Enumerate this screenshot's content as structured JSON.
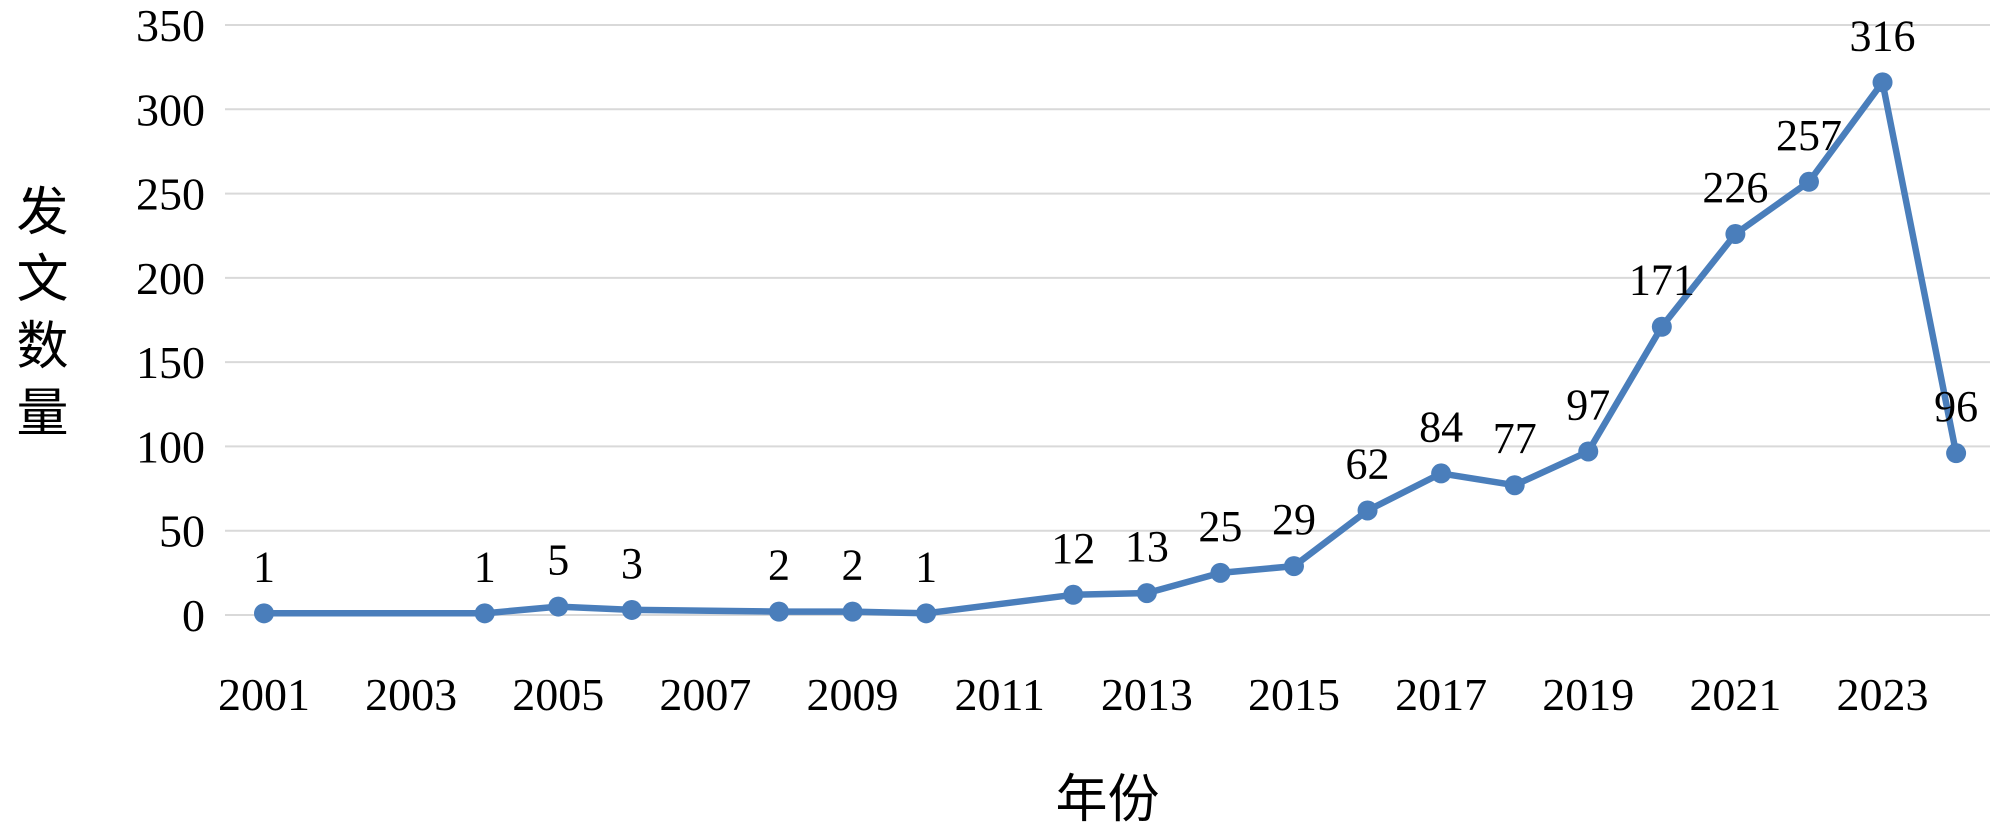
{
  "chart_data": {
    "type": "line",
    "title": "",
    "xlabel": "年份",
    "ylabel": "发文数量",
    "x": [
      2001,
      2004,
      2005,
      2006,
      2008,
      2009,
      2010,
      2012,
      2013,
      2014,
      2015,
      2016,
      2017,
      2018,
      2019,
      2020,
      2021,
      2022,
      2023,
      2024
    ],
    "values": [
      1,
      1,
      5,
      3,
      2,
      2,
      1,
      12,
      13,
      25,
      29,
      62,
      84,
      77,
      97,
      171,
      226,
      257,
      316,
      96
    ],
    "data_labels": [
      "1",
      "1",
      "5",
      "3",
      "2",
      "2",
      "1",
      "12",
      "13",
      "25",
      "29",
      "62",
      "84",
      "77",
      "97",
      "171",
      "226",
      "257",
      "316",
      "96"
    ],
    "x_ticks": [
      2001,
      2003,
      2005,
      2007,
      2009,
      2011,
      2013,
      2015,
      2017,
      2019,
      2021,
      2023
    ],
    "y_ticks": [
      0,
      50,
      100,
      150,
      200,
      250,
      300,
      350
    ],
    "xlim": [
      2001,
      2024
    ],
    "ylim": [
      0,
      350
    ],
    "grid": true,
    "legend": false,
    "colors": {
      "line": "#4A7EBB",
      "marker": "#4A7EBB",
      "grid": "#D9D9D9",
      "text": "#000000",
      "background": "#FFFFFF"
    }
  }
}
